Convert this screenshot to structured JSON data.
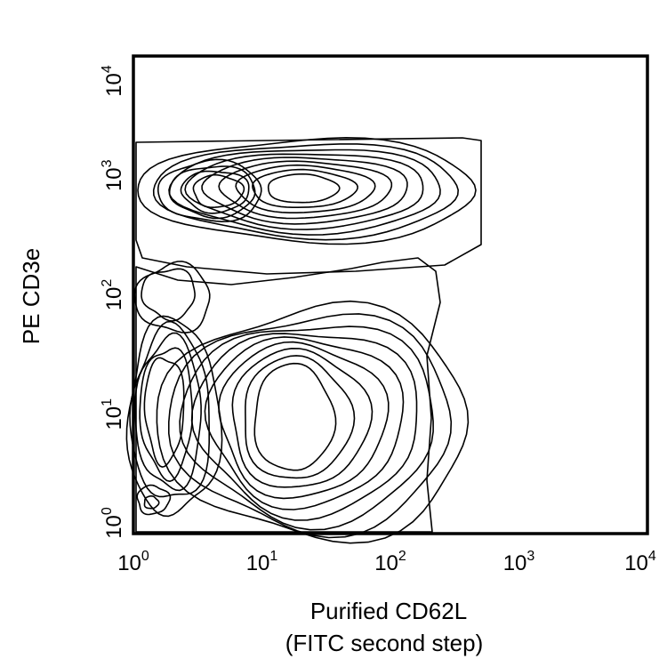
{
  "chart_data": {
    "type": "contour",
    "xlabel_line1": "Purified CD62L",
    "xlabel_line2": "(FITC second step)",
    "ylabel": "PE CD3e",
    "x_scale": "log",
    "y_scale": "log",
    "xlim": [
      1,
      10000
    ],
    "ylim": [
      1,
      10000
    ],
    "x_ticks": [
      {
        "base": "10",
        "exp": "0",
        "value": 1
      },
      {
        "base": "10",
        "exp": "1",
        "value": 10
      },
      {
        "base": "10",
        "exp": "2",
        "value": 100
      },
      {
        "base": "10",
        "exp": "3",
        "value": 1000
      },
      {
        "base": "10",
        "exp": "4",
        "value": 10000
      }
    ],
    "y_ticks": [
      {
        "base": "10",
        "exp": "0",
        "value": 1
      },
      {
        "base": "10",
        "exp": "1",
        "value": 10
      },
      {
        "base": "10",
        "exp": "2",
        "value": 100
      },
      {
        "base": "10",
        "exp": "3",
        "value": 1000
      },
      {
        "base": "10",
        "exp": "4",
        "value": 10000
      }
    ],
    "populations": [
      {
        "name_visible": false,
        "center_x": 40,
        "center_y": 700,
        "description": "CD3e high, CD62L intermediate"
      },
      {
        "name_visible": false,
        "center_x": 6,
        "center_y": 700,
        "description": "CD3e high, CD62L low"
      },
      {
        "name_visible": false,
        "center_x": 40,
        "center_y": 6,
        "description": "CD3e low, CD62L intermediate"
      }
    ],
    "grid": false,
    "legend": "none"
  }
}
